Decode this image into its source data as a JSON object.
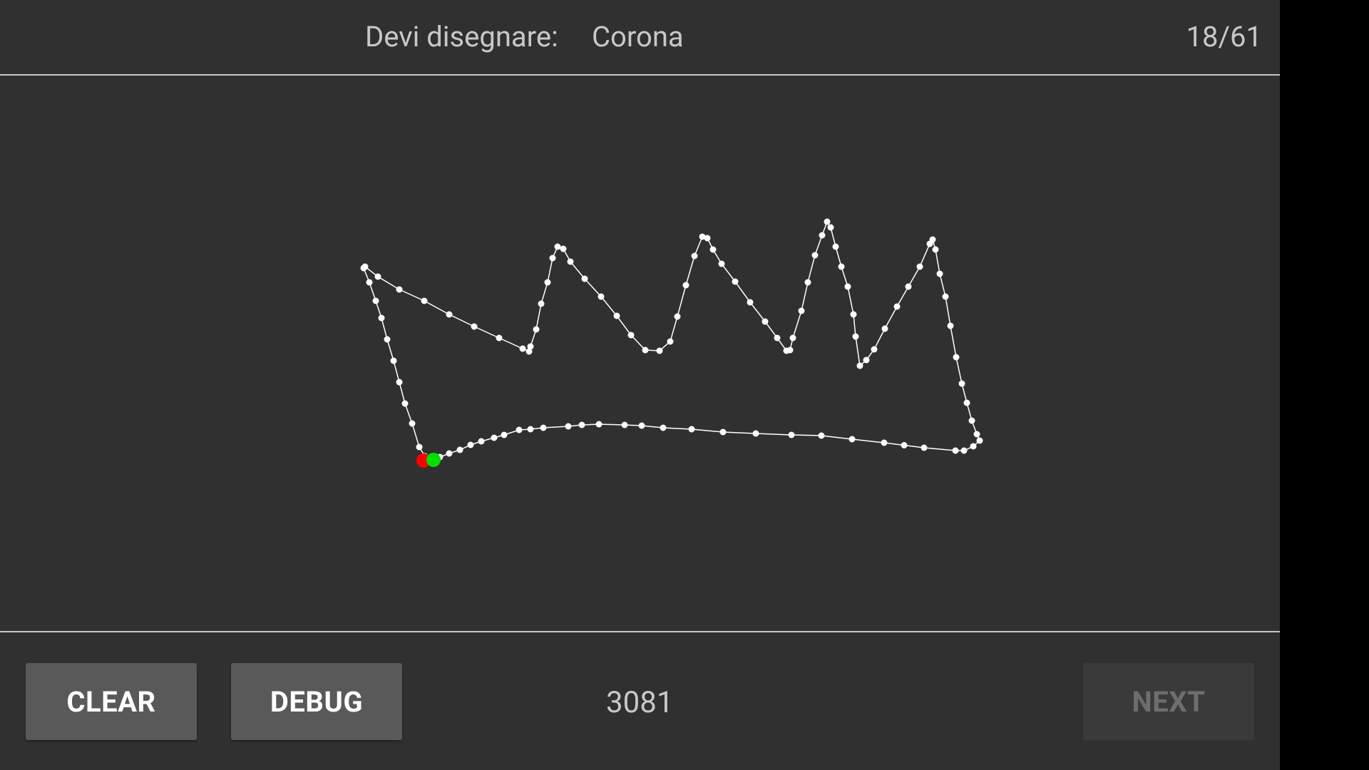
{
  "header": {
    "prompt_label": "Devi disegnare:",
    "prompt_word": "Corona",
    "progress": "18/61"
  },
  "footer": {
    "clear_label": "CLEAR",
    "debug_label": "DEBUG",
    "score": "3081",
    "next_label": "NEXT",
    "next_enabled": false
  },
  "colors": {
    "background": "#303030",
    "stroke": "#ffffff",
    "start_point": "#ff0000",
    "end_point": "#00e000",
    "button": "#595959",
    "button_disabled": "#3a3a3a"
  }
}
